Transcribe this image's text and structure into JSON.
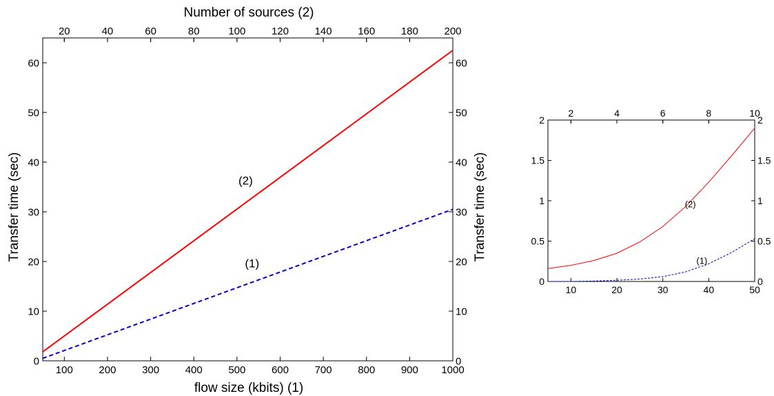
{
  "chart_data": [
    {
      "type": "line",
      "title": "",
      "xlabel": "flow size (kbits) (1)",
      "ylabel": "Transfer time (sec)",
      "ylabel_right": "Transfer time (sec)",
      "x2label": "Number of sources (2)",
      "xlim": [
        50,
        1000
      ],
      "x2lim": [
        10,
        200
      ],
      "ylim": [
        0,
        65
      ],
      "x_ticks": [
        100,
        200,
        300,
        400,
        500,
        600,
        700,
        800,
        900,
        1000
      ],
      "x2_ticks": [
        20,
        40,
        60,
        80,
        100,
        120,
        140,
        160,
        180,
        200
      ],
      "y_ticks": [
        0,
        10,
        20,
        30,
        40,
        50,
        60
      ],
      "grid": false,
      "series": [
        {
          "name": "(2)",
          "axis": "top",
          "color": "#ff0000",
          "dash": "solid",
          "x": [
            10,
            200
          ],
          "y": [
            1.8,
            62.5
          ]
        },
        {
          "name": "(1)",
          "axis": "bottom",
          "color": "#0000cc",
          "dash": "dashed",
          "x": [
            50,
            1000
          ],
          "y": [
            0.5,
            30.5
          ]
        }
      ],
      "annotations": [
        {
          "text": "(2)",
          "x": 520,
          "y": 35.5
        },
        {
          "text": "(1)",
          "x": 535,
          "y": 18.8
        }
      ]
    },
    {
      "type": "line",
      "title": "",
      "xlabel": "",
      "ylabel": "",
      "xlim": [
        5,
        50
      ],
      "x2lim": [
        1,
        10
      ],
      "ylim": [
        0,
        2
      ],
      "x_ticks": [
        10,
        20,
        30,
        40,
        50
      ],
      "x2_ticks": [
        2,
        4,
        6,
        8,
        10
      ],
      "y_ticks": [
        0,
        0.5,
        1,
        1.5,
        2
      ],
      "grid": false,
      "series": [
        {
          "name": "(2)",
          "axis": "top",
          "color": "#ff0000",
          "dash": "solid",
          "x": [
            1,
            2,
            3,
            4,
            5,
            6,
            7,
            8,
            9,
            10
          ],
          "y": [
            0.16,
            0.2,
            0.26,
            0.35,
            0.49,
            0.68,
            0.93,
            1.23,
            1.56,
            1.9
          ]
        },
        {
          "name": "(1)",
          "axis": "bottom",
          "color": "#0000cc",
          "dash": "dashed",
          "x": [
            5,
            10,
            15,
            20,
            25,
            30,
            35,
            40,
            45,
            50
          ],
          "y": [
            0.0,
            0.0,
            0.005,
            0.015,
            0.03,
            0.06,
            0.12,
            0.22,
            0.36,
            0.53
          ]
        }
      ],
      "annotations": [
        {
          "text": "(2)",
          "x": 36,
          "y": 0.92
        },
        {
          "text": "(1)",
          "x": 38.5,
          "y": 0.22
        }
      ]
    }
  ]
}
